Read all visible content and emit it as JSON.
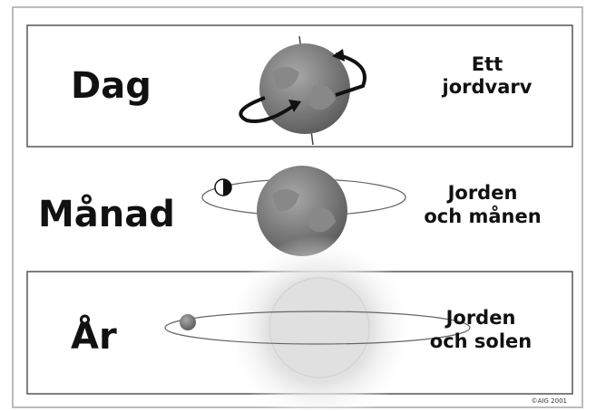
{
  "rows": [
    {
      "label": "Dag",
      "description": [
        "Ett",
        "jordvarv"
      ]
    },
    {
      "label": "Månad",
      "description": [
        "Jorden",
        "och månen"
      ]
    },
    {
      "label": "År",
      "description": [
        "Jorden",
        "och solen"
      ]
    }
  ],
  "copyright": "©AIG 2001"
}
